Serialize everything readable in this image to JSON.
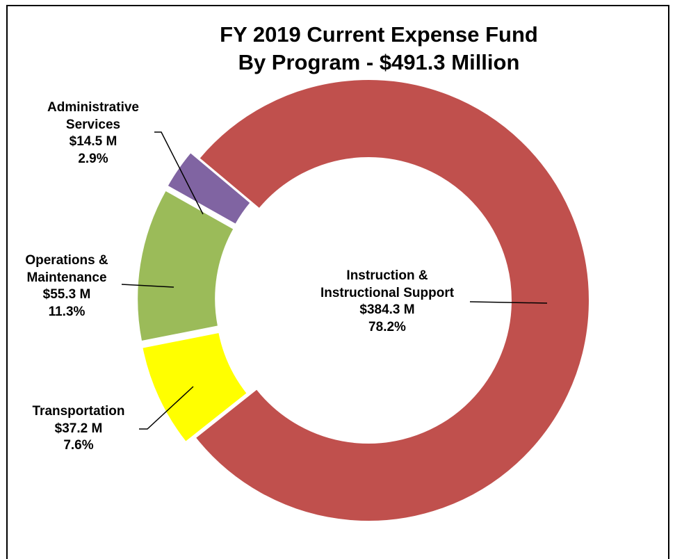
{
  "chart_data": {
    "type": "donut",
    "title": "FY 2019 Current Expense Fund\nBy Program - $491.3 Million",
    "categories": [
      "Instruction &\nInstructional Support",
      "Transportation",
      "Operations &\nMaintenance",
      "Administrative\nServices"
    ],
    "values": [
      384.3,
      37.2,
      55.3,
      14.5
    ],
    "value_labels": [
      "$384.3 M",
      "$37.2 M",
      "$55.3 M",
      "$14.5 M"
    ],
    "percents": [
      78.2,
      7.6,
      11.3,
      2.9
    ],
    "percent_labels": [
      "78.2%",
      "7.6%",
      "11.3%",
      "2.9%"
    ],
    "colors": [
      "#c0504d",
      "#ffff00",
      "#9bbb59",
      "#8064a2"
    ]
  }
}
